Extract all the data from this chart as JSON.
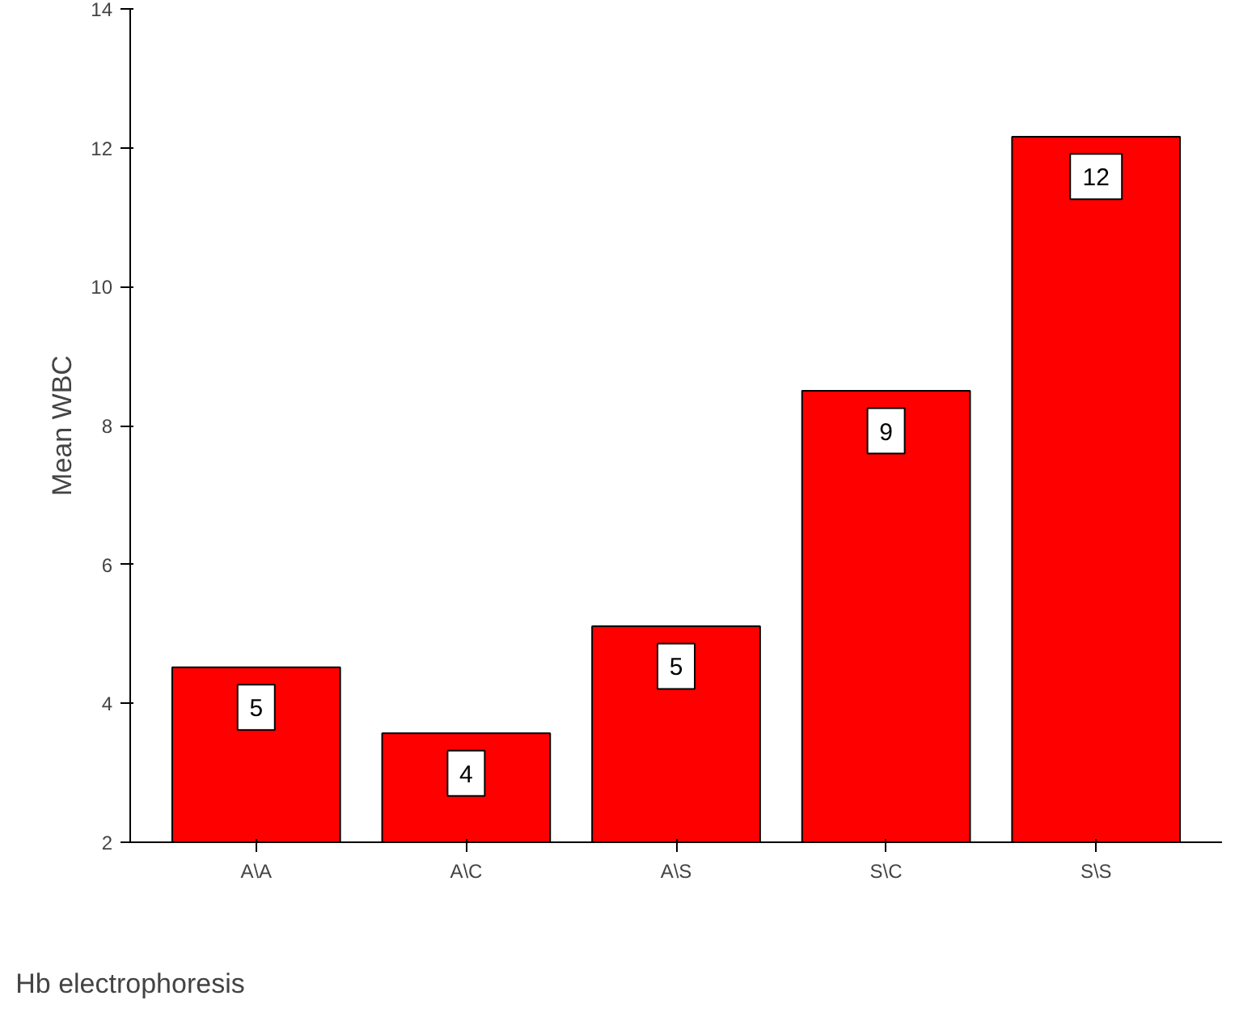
{
  "chart_data": {
    "type": "bar",
    "xlabel": "Hb electrophoresis",
    "ylabel": "Mean WBC",
    "categories": [
      "A\\A",
      "A\\C",
      "A\\S",
      "S\\C",
      "S\\S"
    ],
    "values": [
      4.52,
      3.57,
      5.11,
      8.5,
      12.16
    ],
    "value_labels": [
      "5",
      "4",
      "5",
      "9",
      "12"
    ],
    "color": "#ff0000",
    "ylim": [
      2,
      14
    ],
    "yticks": [
      2,
      4,
      6,
      8,
      10,
      12,
      14
    ],
    "grid": false
  }
}
